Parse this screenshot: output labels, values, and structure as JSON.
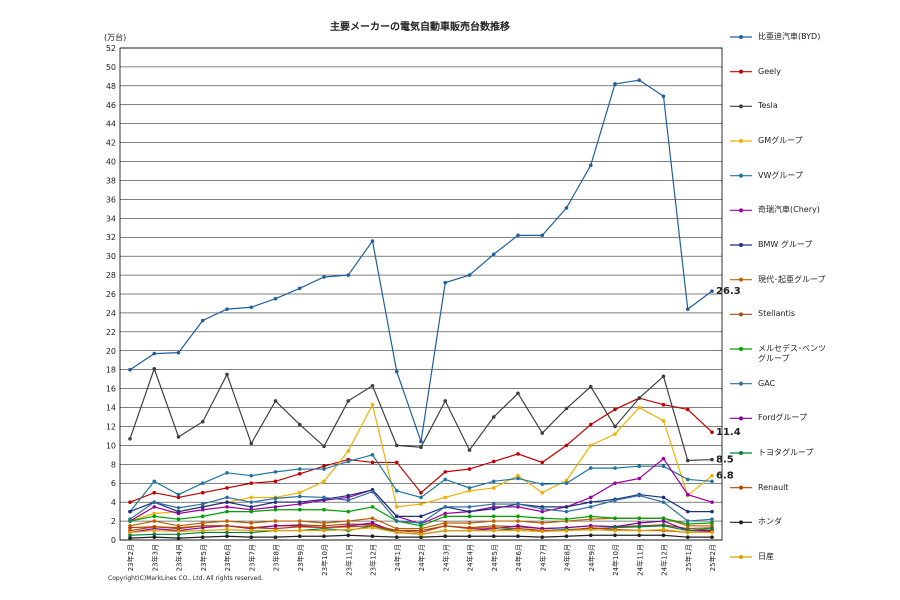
{
  "chart_data": {
    "type": "line",
    "title": "主要メーカーの電気自動車販売台数推移",
    "y_unit": "(万台)",
    "copyright": "Copyright(C)MarkLines CO., Ltd. All rights reserved.",
    "categories": [
      "23年2月",
      "23年3月",
      "23年4月",
      "23年5月",
      "23年6月",
      "23年7月",
      "23年8月",
      "23年9月",
      "23年10月",
      "23年11月",
      "23年12月",
      "24年1月",
      "24年2月",
      "24年3月",
      "24年4月",
      "24年5月",
      "24年6月",
      "24年7月",
      "24年8月",
      "24年9月",
      "24年10月",
      "24年11月",
      "24年12月",
      "25年1月",
      "25年2月"
    ],
    "ylim": [
      0,
      52
    ],
    "yticks": [
      0,
      2,
      4,
      6,
      8,
      10,
      12,
      14,
      16,
      18,
      20,
      22,
      24,
      26,
      28,
      30,
      32,
      34,
      36,
      38,
      40,
      42,
      44,
      46,
      48,
      50,
      52
    ],
    "grid": true,
    "series": [
      {
        "name": "比亜迪汽車(BYD)",
        "color": "#1f5f9f",
        "end_label": true,
        "values": [
          18,
          19.7,
          19.8,
          23.2,
          24.4,
          24.6,
          25.5,
          26.6,
          27.8,
          28,
          31.6,
          17.8,
          10.4,
          27.2,
          28,
          30.2,
          32.2,
          32.2,
          35.1,
          39.6,
          48.2,
          48.6,
          46.9,
          24.4,
          26.3
        ]
      },
      {
        "name": "Geely",
        "color": "#c00000",
        "end_label": true,
        "values": [
          4,
          5,
          4.5,
          5,
          5.5,
          6,
          6.2,
          7,
          7.8,
          8.5,
          8.2,
          8.2,
          5,
          7.2,
          7.5,
          8.3,
          9.1,
          8.2,
          10,
          12.2,
          13.8,
          15,
          14.3,
          13.8,
          11.4
        ]
      },
      {
        "name": "Tesla",
        "color": "#404040",
        "end_label": true,
        "values": [
          10.7,
          18.1,
          10.9,
          12.5,
          17.5,
          10.2,
          14.7,
          12.2,
          9.9,
          14.7,
          16.3,
          10,
          9.8,
          14.7,
          9.5,
          13,
          15.5,
          11.3,
          13.9,
          16.2,
          12,
          15,
          17.3,
          8.4,
          8.5
        ]
      },
      {
        "name": "GMグループ",
        "color": "#f0b000",
        "end_label": true,
        "values": [
          2,
          2.8,
          3,
          3.5,
          4,
          4.5,
          4.5,
          5,
          6.2,
          9.4,
          14.3,
          3.5,
          3.8,
          4.5,
          5.2,
          5.5,
          6.8,
          5,
          6.3,
          10,
          11.2,
          14,
          12.6,
          4.7,
          6.8
        ]
      },
      {
        "name": "VWグループ",
        "color": "#1f77a0",
        "values": [
          3,
          6.2,
          4.8,
          6,
          7.1,
          6.8,
          7.2,
          7.5,
          7.5,
          8.3,
          9,
          5.2,
          4.5,
          6.4,
          5.5,
          6.2,
          6.5,
          5.9,
          6,
          7.6,
          7.6,
          7.8,
          7.8,
          6.4,
          6.2
        ]
      },
      {
        "name": "奇瑞汽車(Chery)",
        "color": "#a000a0",
        "values": [
          2,
          3.5,
          2.8,
          3.2,
          3.5,
          3.2,
          3.5,
          3.8,
          4.2,
          4.5,
          5.3,
          2.5,
          1.7,
          2.8,
          3,
          3.5,
          3.5,
          3,
          3.5,
          4.5,
          6,
          6.5,
          8.6,
          4.8,
          4
        ]
      },
      {
        "name": "BMW グループ",
        "color": "#203080",
        "values": [
          3,
          4,
          3,
          3.5,
          4,
          3.5,
          4,
          4,
          4.3,
          4.7,
          5.3,
          2.5,
          2.5,
          3.5,
          3,
          3.3,
          3.8,
          3.5,
          3.5,
          4,
          4.3,
          4.8,
          4.5,
          3,
          3
        ]
      },
      {
        "name": "現代･起亜グループ",
        "color": "#c06000",
        "values": [
          1.5,
          2,
          1.5,
          1.8,
          2,
          1.8,
          2,
          2,
          1.8,
          2,
          2.3,
          1.2,
          1.2,
          1.8,
          1.8,
          2,
          2,
          1.8,
          2,
          2.2,
          2.3,
          2.3,
          2.3,
          1.5,
          1.5
        ]
      },
      {
        "name": "Stellantis",
        "color": "#a05010",
        "values": [
          1,
          1.4,
          1.2,
          1.5,
          1.5,
          1.3,
          1.5,
          1.6,
          1.5,
          1.7,
          1.6,
          1,
          1,
          1.5,
          1.3,
          1.5,
          1.4,
          1.2,
          1.3,
          1.5,
          1.4,
          1.5,
          1.6,
          1.2,
          1.3
        ]
      },
      {
        "name": "メルセデス･ベンツグループ",
        "color": "#00a000",
        "values": [
          2,
          2.5,
          2.2,
          2.5,
          3,
          3,
          3.2,
          3.2,
          3.2,
          3,
          3.5,
          2,
          1.5,
          2.5,
          2.5,
          2.5,
          2.5,
          2.3,
          2.2,
          2.5,
          2.3,
          2.3,
          2.3,
          1.7,
          1.8
        ]
      },
      {
        "name": "GAC",
        "color": "#3070a0",
        "values": [
          2.2,
          4,
          3.4,
          3.8,
          4.5,
          4,
          4.4,
          4.6,
          4.5,
          4.2,
          5.1,
          2,
          1.8,
          3.5,
          3.5,
          3.8,
          3.8,
          3.3,
          3,
          3.5,
          4.2,
          4.7,
          4,
          2,
          2.2
        ]
      },
      {
        "name": "Fordグループ",
        "color": "#8000a0",
        "values": [
          0.8,
          1.2,
          1,
          1.3,
          1.5,
          1.2,
          1.5,
          1.5,
          1.3,
          1.5,
          1.8,
          0.8,
          0.6,
          1,
          1,
          1.2,
          1.5,
          1.2,
          1.3,
          1.5,
          1.4,
          1.8,
          2,
          1,
          1
        ]
      },
      {
        "name": "トヨタグループ",
        "color": "#008040",
        "values": [
          0.5,
          0.6,
          0.6,
          0.8,
          0.8,
          0.8,
          1,
          1,
          1.2,
          1,
          1.5,
          0.8,
          0.6,
          1,
          1,
          1,
          1.2,
          1,
          1.1,
          1.2,
          1.3,
          1.4,
          1.5,
          1,
          1.2
        ]
      },
      {
        "name": "Renault",
        "color": "#c04000",
        "values": [
          1.3,
          1.4,
          1.3,
          1.5,
          1.5,
          1.3,
          1.2,
          1.4,
          1.3,
          1.4,
          1.5,
          1,
          0.8,
          1.5,
          1.2,
          1.3,
          1.2,
          1,
          1,
          1.3,
          1.1,
          1,
          1,
          0.8,
          0.9
        ]
      },
      {
        "name": "ホンダ",
        "color": "#202020",
        "values": [
          0.2,
          0.3,
          0.2,
          0.3,
          0.4,
          0.3,
          0.3,
          0.4,
          0.4,
          0.5,
          0.4,
          0.3,
          0.3,
          0.4,
          0.4,
          0.4,
          0.4,
          0.3,
          0.4,
          0.5,
          0.5,
          0.5,
          0.5,
          0.3,
          0.3
        ]
      },
      {
        "name": "日産",
        "color": "#e0a000",
        "values": [
          0.8,
          1,
          0.9,
          1,
          1.1,
          1,
          1,
          1,
          1,
          1.1,
          1.3,
          0.8,
          0.6,
          1,
          1,
          1,
          1,
          0.9,
          1,
          1.1,
          1,
          1,
          1.1,
          0.8,
          0.8
        ]
      }
    ]
  }
}
